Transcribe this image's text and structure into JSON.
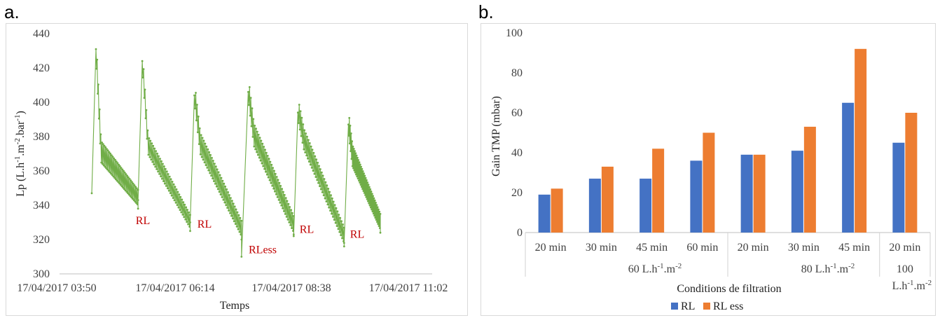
{
  "panels": {
    "a_label": "a.",
    "b_label": "b."
  },
  "chart_data": [
    {
      "type": "line",
      "color": "#70ad47",
      "ylabel": "Lp (L.h-1.m-2.bar-1)",
      "ylabel_parts": {
        "p1": "Lp (L.h",
        "s1": "-1",
        "p2": ".m",
        "s2": "-2",
        "p3": ".bar",
        "s3": "-1",
        "p4": ")"
      },
      "xlabel": "Temps",
      "ylim": [
        300,
        440
      ],
      "yticks": [
        "300",
        "320",
        "340",
        "360",
        "380",
        "400",
        "420",
        "440"
      ],
      "xticks": [
        "17/04/2017 03:50",
        "17/04/2017 06:14",
        "17/04/2017 08:38",
        "17/04/2017 11:02"
      ],
      "annotations": [
        {
          "text": "RL",
          "x": 0.43,
          "y": 331
        },
        {
          "text": "RL",
          "x": 1.09,
          "y": 329
        },
        {
          "text": "RLess",
          "x": 1.8,
          "y": 314
        },
        {
          "text": "RL",
          "x": 2.46,
          "y": 326
        },
        {
          "text": "RL",
          "x": 3.07,
          "y": 323
        }
      ],
      "cycles": [
        {
          "t0": 0.0,
          "t1": 0.05,
          "t_end": 0.55,
          "start": 347,
          "peak": 431,
          "plateau": 370,
          "end": 338,
          "amp": 14
        },
        {
          "t0": 0.55,
          "t1": 0.6,
          "t_end": 1.17,
          "start": 343,
          "peak": 424,
          "plateau": 374,
          "end": 325,
          "amp": 12
        },
        {
          "t0": 1.17,
          "t1": 1.22,
          "t_end": 1.78,
          "start": 330,
          "peak": 404,
          "plateau": 375,
          "end": 320,
          "amp": 14
        },
        {
          "t0": 1.78,
          "t1": 1.86,
          "t_end": 2.4,
          "start": 310,
          "peak": 406,
          "plateau": 380,
          "end": 322,
          "amp": 15
        },
        {
          "t0": 2.4,
          "t1": 2.45,
          "t_end": 3.0,
          "start": 323,
          "peak": 394,
          "plateau": 378,
          "end": 316,
          "amp": 14
        },
        {
          "t0": 3.0,
          "t1": 3.05,
          "t_end": 3.43,
          "start": 318,
          "peak": 387,
          "plateau": 368,
          "end": 324,
          "amp": 14
        }
      ]
    },
    {
      "type": "bar",
      "ylabel": "Gain TMP (mbar)",
      "xlabel": "Conditions de filtration",
      "ylim": [
        0,
        100
      ],
      "yticks": [
        "0",
        "20",
        "40",
        "60",
        "80",
        "100"
      ],
      "categories": [
        "20 min",
        "30 min",
        "45 min",
        "60 min",
        "20 min",
        "30 min",
        "45 min",
        "20 min"
      ],
      "groups": [
        {
          "label": "60 L.h-1.m-2",
          "parts": {
            "p1": "60 L.h",
            "s1": "-1",
            "p2": ".m",
            "s2": "-2"
          },
          "span": 4
        },
        {
          "label": "80 L.h-1.m-2",
          "parts": {
            "p1": "80 L.h",
            "s1": "-1",
            "p2": ".m",
            "s2": "-2"
          },
          "span": 3
        },
        {
          "label": "100 L.h-1.m-2",
          "parts": {
            "p0": "100",
            "p1": "L.h",
            "s1": "-1",
            "p2": ".m",
            "s2": "-2"
          },
          "span": 1
        }
      ],
      "series": [
        {
          "name": "RL",
          "color": "#4472c4",
          "values": [
            19,
            27,
            27,
            36,
            39,
            41,
            65,
            45
          ]
        },
        {
          "name": "RL ess",
          "color": "#ed7d31",
          "values": [
            22,
            33,
            42,
            50,
            39,
            53,
            92,
            60
          ]
        }
      ],
      "legend": "bottom"
    }
  ]
}
